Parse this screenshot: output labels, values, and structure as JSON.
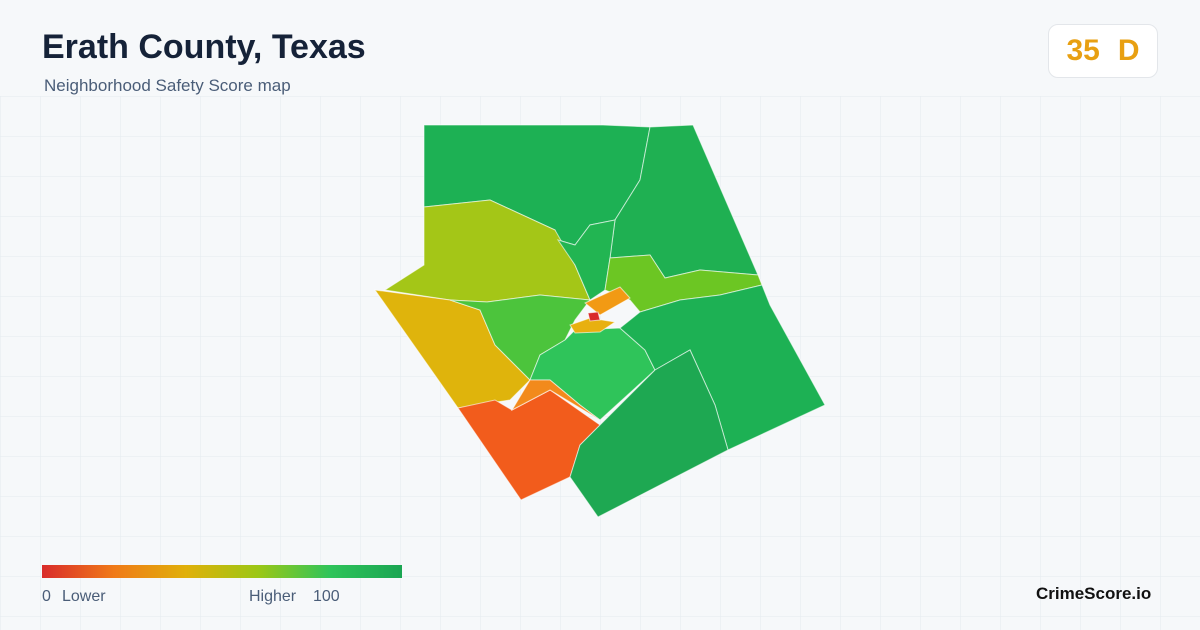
{
  "header": {
    "title": "Erath County, Texas",
    "subtitle": "Neighborhood Safety Score map"
  },
  "score": {
    "value": "35",
    "grade": "D"
  },
  "legend": {
    "min": "0",
    "min_label": "Lower",
    "max_label": "Higher",
    "max": "100"
  },
  "brand": "CrimeScore.io"
}
